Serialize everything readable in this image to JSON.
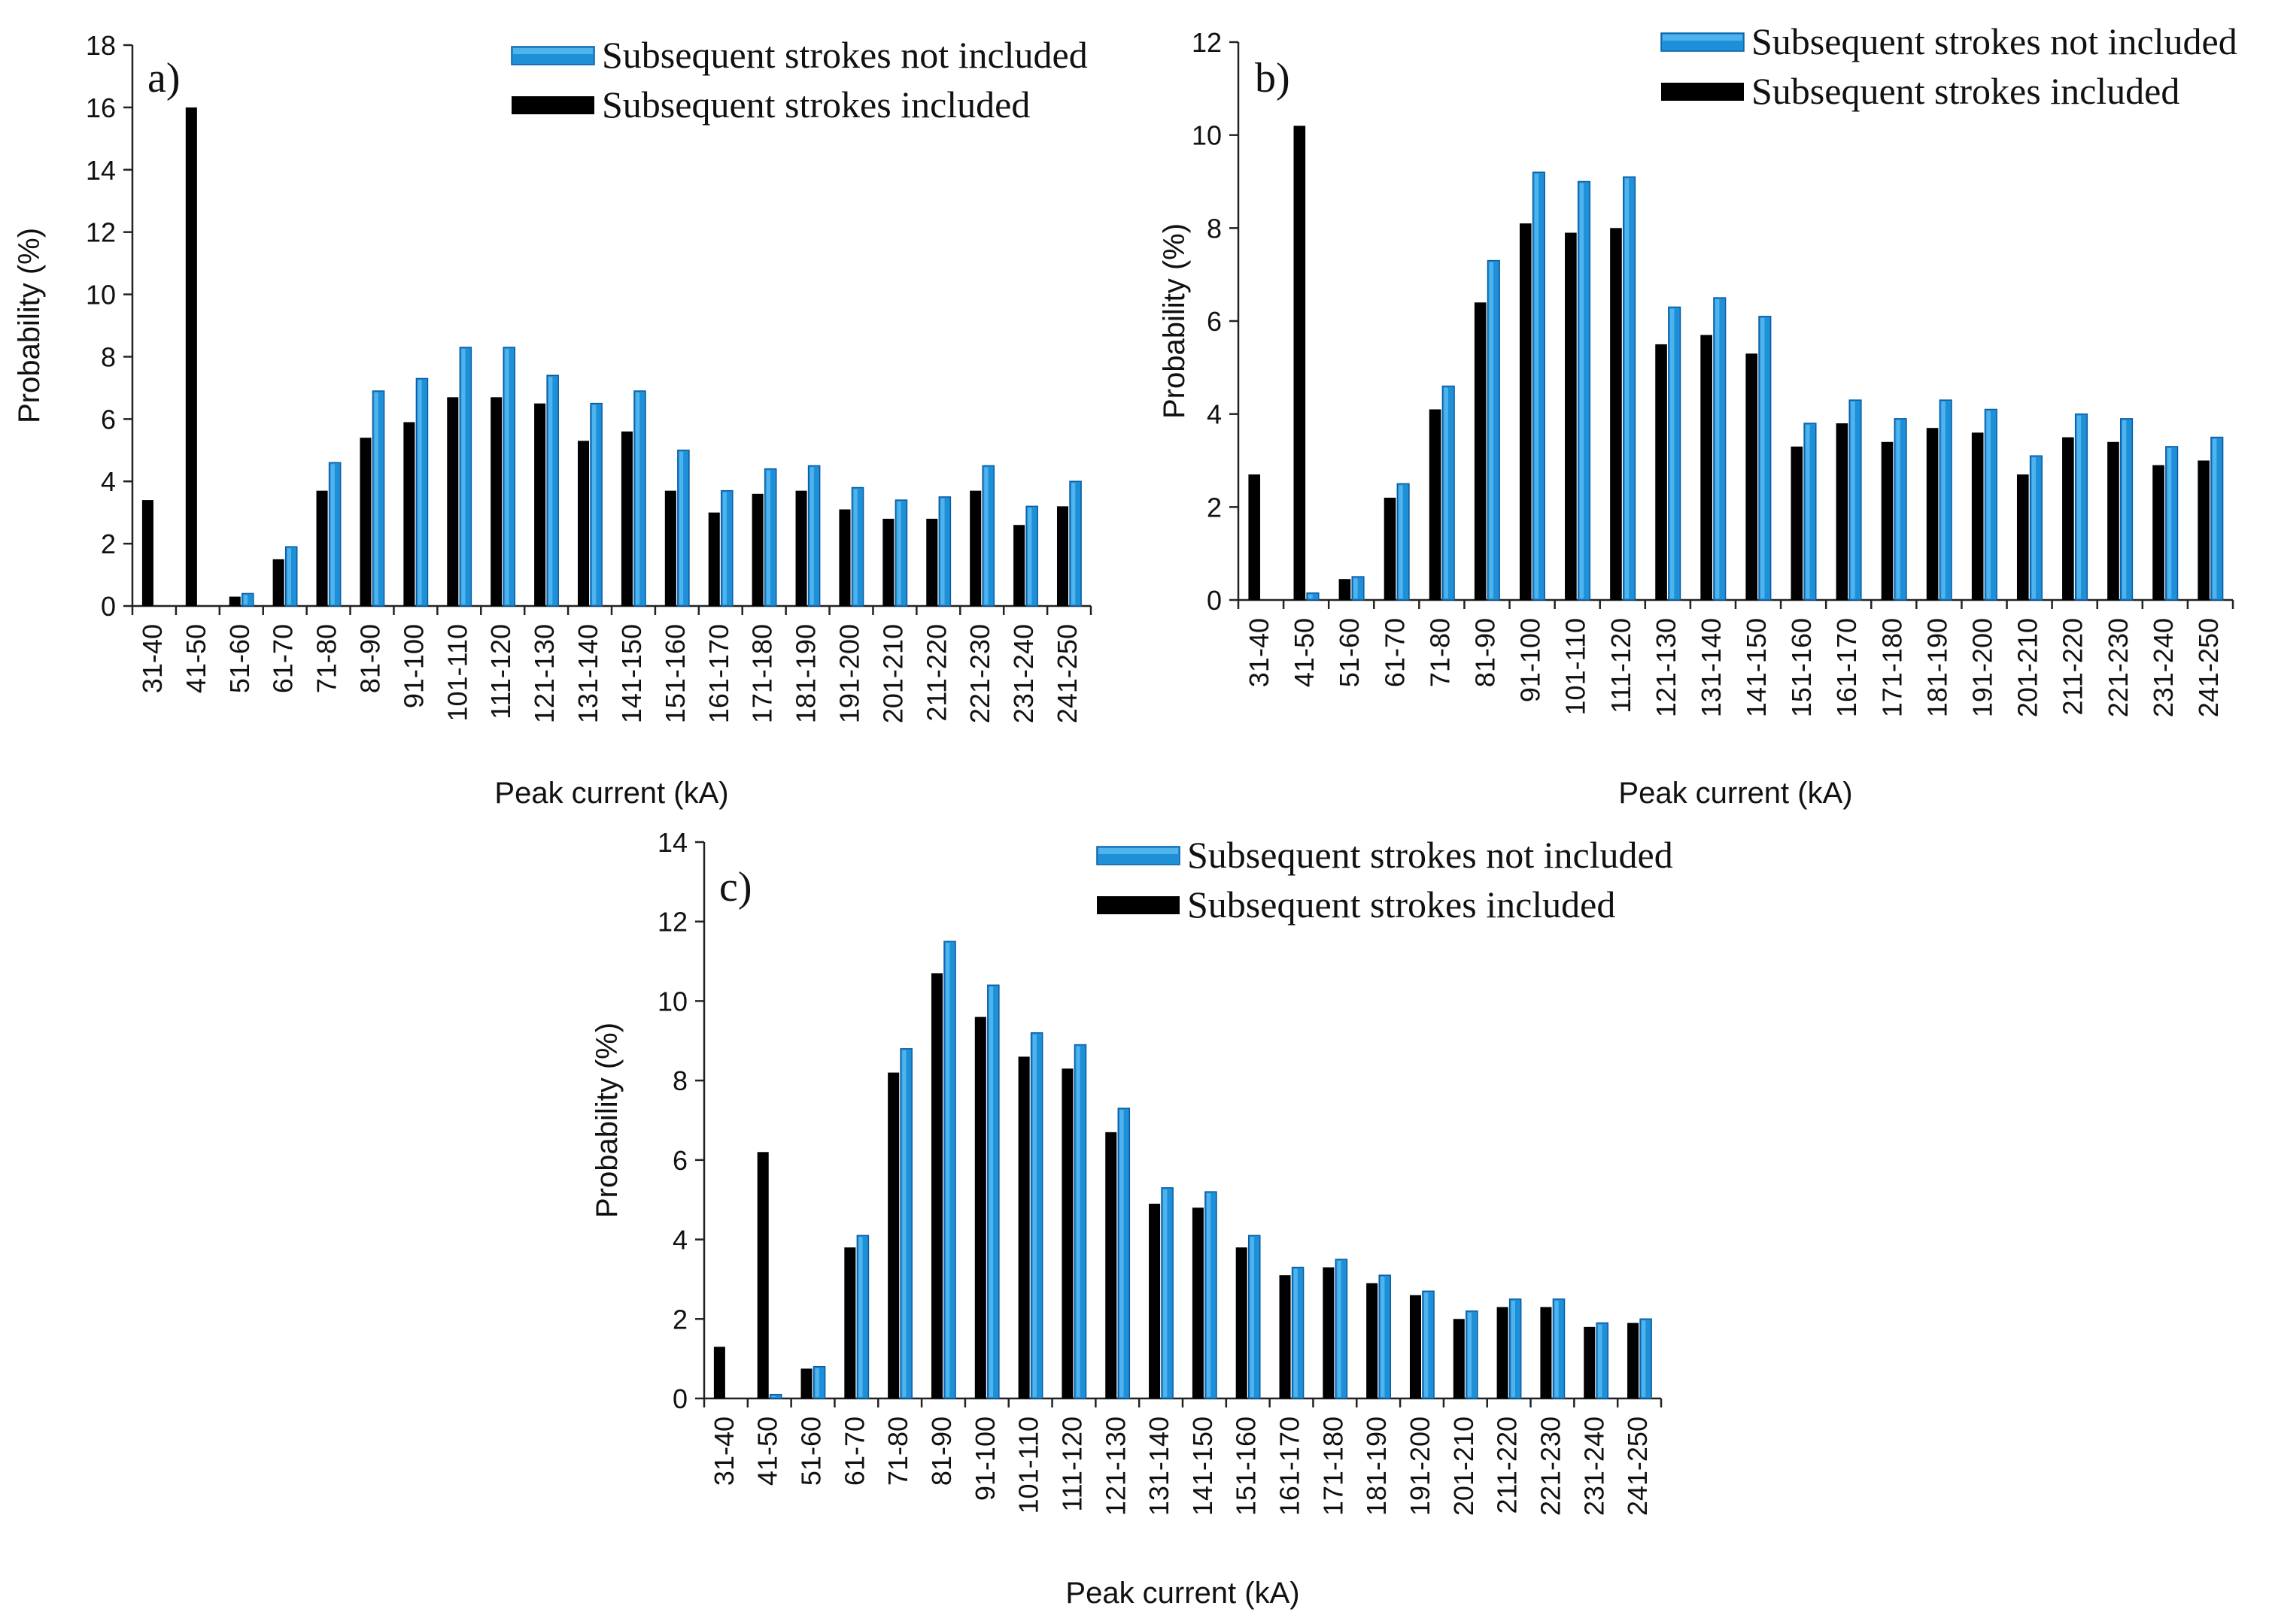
{
  "chart_data": [
    {
      "type": "bar",
      "panel_label": "a)",
      "xlabel": "Peak current (kA)",
      "ylabel": "Probability (%)",
      "ylim": [
        0,
        18
      ],
      "ytick_step": 2,
      "categories": [
        "31-40",
        "41-50",
        "51-60",
        "61-70",
        "71-80",
        "81-90",
        "91-100",
        "101-110",
        "111-120",
        "121-130",
        "131-140",
        "141-150",
        "151-160",
        "161-170",
        "171-180",
        "181-190",
        "191-200",
        "201-210",
        "211-220",
        "221-230",
        "231-240",
        "241-250"
      ],
      "series": [
        {
          "name": "Subsequent strokes included",
          "color": "#000000",
          "values": [
            3.4,
            16.0,
            0.3,
            1.5,
            3.7,
            5.4,
            5.9,
            6.7,
            6.7,
            6.5,
            5.3,
            5.6,
            3.7,
            3.0,
            3.6,
            3.7,
            3.1,
            2.8,
            2.8,
            3.7,
            2.6,
            3.2
          ]
        },
        {
          "name": "Subsequent strokes not included",
          "color": "#1e90d8",
          "values": [
            0,
            0,
            0.4,
            1.9,
            4.6,
            6.9,
            7.3,
            8.3,
            8.3,
            7.4,
            6.5,
            6.9,
            5.0,
            3.7,
            4.4,
            4.5,
            3.8,
            3.4,
            3.5,
            4.5,
            3.2,
            4.0
          ]
        }
      ],
      "legend": [
        "Subsequent strokes not included",
        "Subsequent strokes included"
      ]
    },
    {
      "type": "bar",
      "panel_label": "b)",
      "xlabel": "Peak current (kA)",
      "ylabel": "Probability (%)",
      "ylim": [
        0,
        12
      ],
      "ytick_step": 2,
      "categories": [
        "31-40",
        "41-50",
        "51-60",
        "61-70",
        "71-80",
        "81-90",
        "91-100",
        "101-110",
        "111-120",
        "121-130",
        "131-140",
        "141-150",
        "151-160",
        "161-170",
        "171-180",
        "181-190",
        "191-200",
        "201-210",
        "211-220",
        "221-230",
        "231-240",
        "241-250"
      ],
      "series": [
        {
          "name": "Subsequent strokes included",
          "color": "#000000",
          "values": [
            2.7,
            10.2,
            0.45,
            2.2,
            4.1,
            6.4,
            8.1,
            7.9,
            8.0,
            5.5,
            5.7,
            5.3,
            3.3,
            3.8,
            3.4,
            3.7,
            3.6,
            2.7,
            3.5,
            3.4,
            2.9,
            3.0
          ]
        },
        {
          "name": "Subsequent strokes not included",
          "color": "#1e90d8",
          "values": [
            0,
            0.15,
            0.5,
            2.5,
            4.6,
            7.3,
            9.2,
            9.0,
            9.1,
            6.3,
            6.5,
            6.1,
            3.8,
            4.3,
            3.9,
            4.3,
            4.1,
            3.1,
            4.0,
            3.9,
            3.3,
            3.5
          ]
        }
      ],
      "legend": [
        "Subsequent strokes not included",
        "Subsequent strokes included"
      ]
    },
    {
      "type": "bar",
      "panel_label": "c)",
      "xlabel": "Peak current (kA)",
      "ylabel": "Probability (%)",
      "ylim": [
        0,
        14
      ],
      "ytick_step": 2,
      "categories": [
        "31-40",
        "41-50",
        "51-60",
        "61-70",
        "71-80",
        "81-90",
        "91-100",
        "101-110",
        "111-120",
        "121-130",
        "131-140",
        "141-150",
        "151-160",
        "161-170",
        "171-180",
        "181-190",
        "191-200",
        "201-210",
        "211-220",
        "221-230",
        "231-240",
        "241-250"
      ],
      "series": [
        {
          "name": "Subsequent strokes included",
          "color": "#000000",
          "values": [
            1.3,
            6.2,
            0.75,
            3.8,
            8.2,
            10.7,
            9.6,
            8.6,
            8.3,
            6.7,
            4.9,
            4.8,
            3.8,
            3.1,
            3.3,
            2.9,
            2.6,
            2.0,
            2.3,
            2.3,
            1.8,
            1.9
          ]
        },
        {
          "name": "Subsequent strokes not included",
          "color": "#1e90d8",
          "values": [
            0,
            0.1,
            0.8,
            4.1,
            8.8,
            11.5,
            10.4,
            9.2,
            8.9,
            7.3,
            5.3,
            5.2,
            4.1,
            3.3,
            3.5,
            3.1,
            2.7,
            2.2,
            2.5,
            2.5,
            1.9,
            2.0
          ]
        }
      ],
      "legend": [
        "Subsequent strokes not included",
        "Subsequent strokes included"
      ]
    }
  ]
}
